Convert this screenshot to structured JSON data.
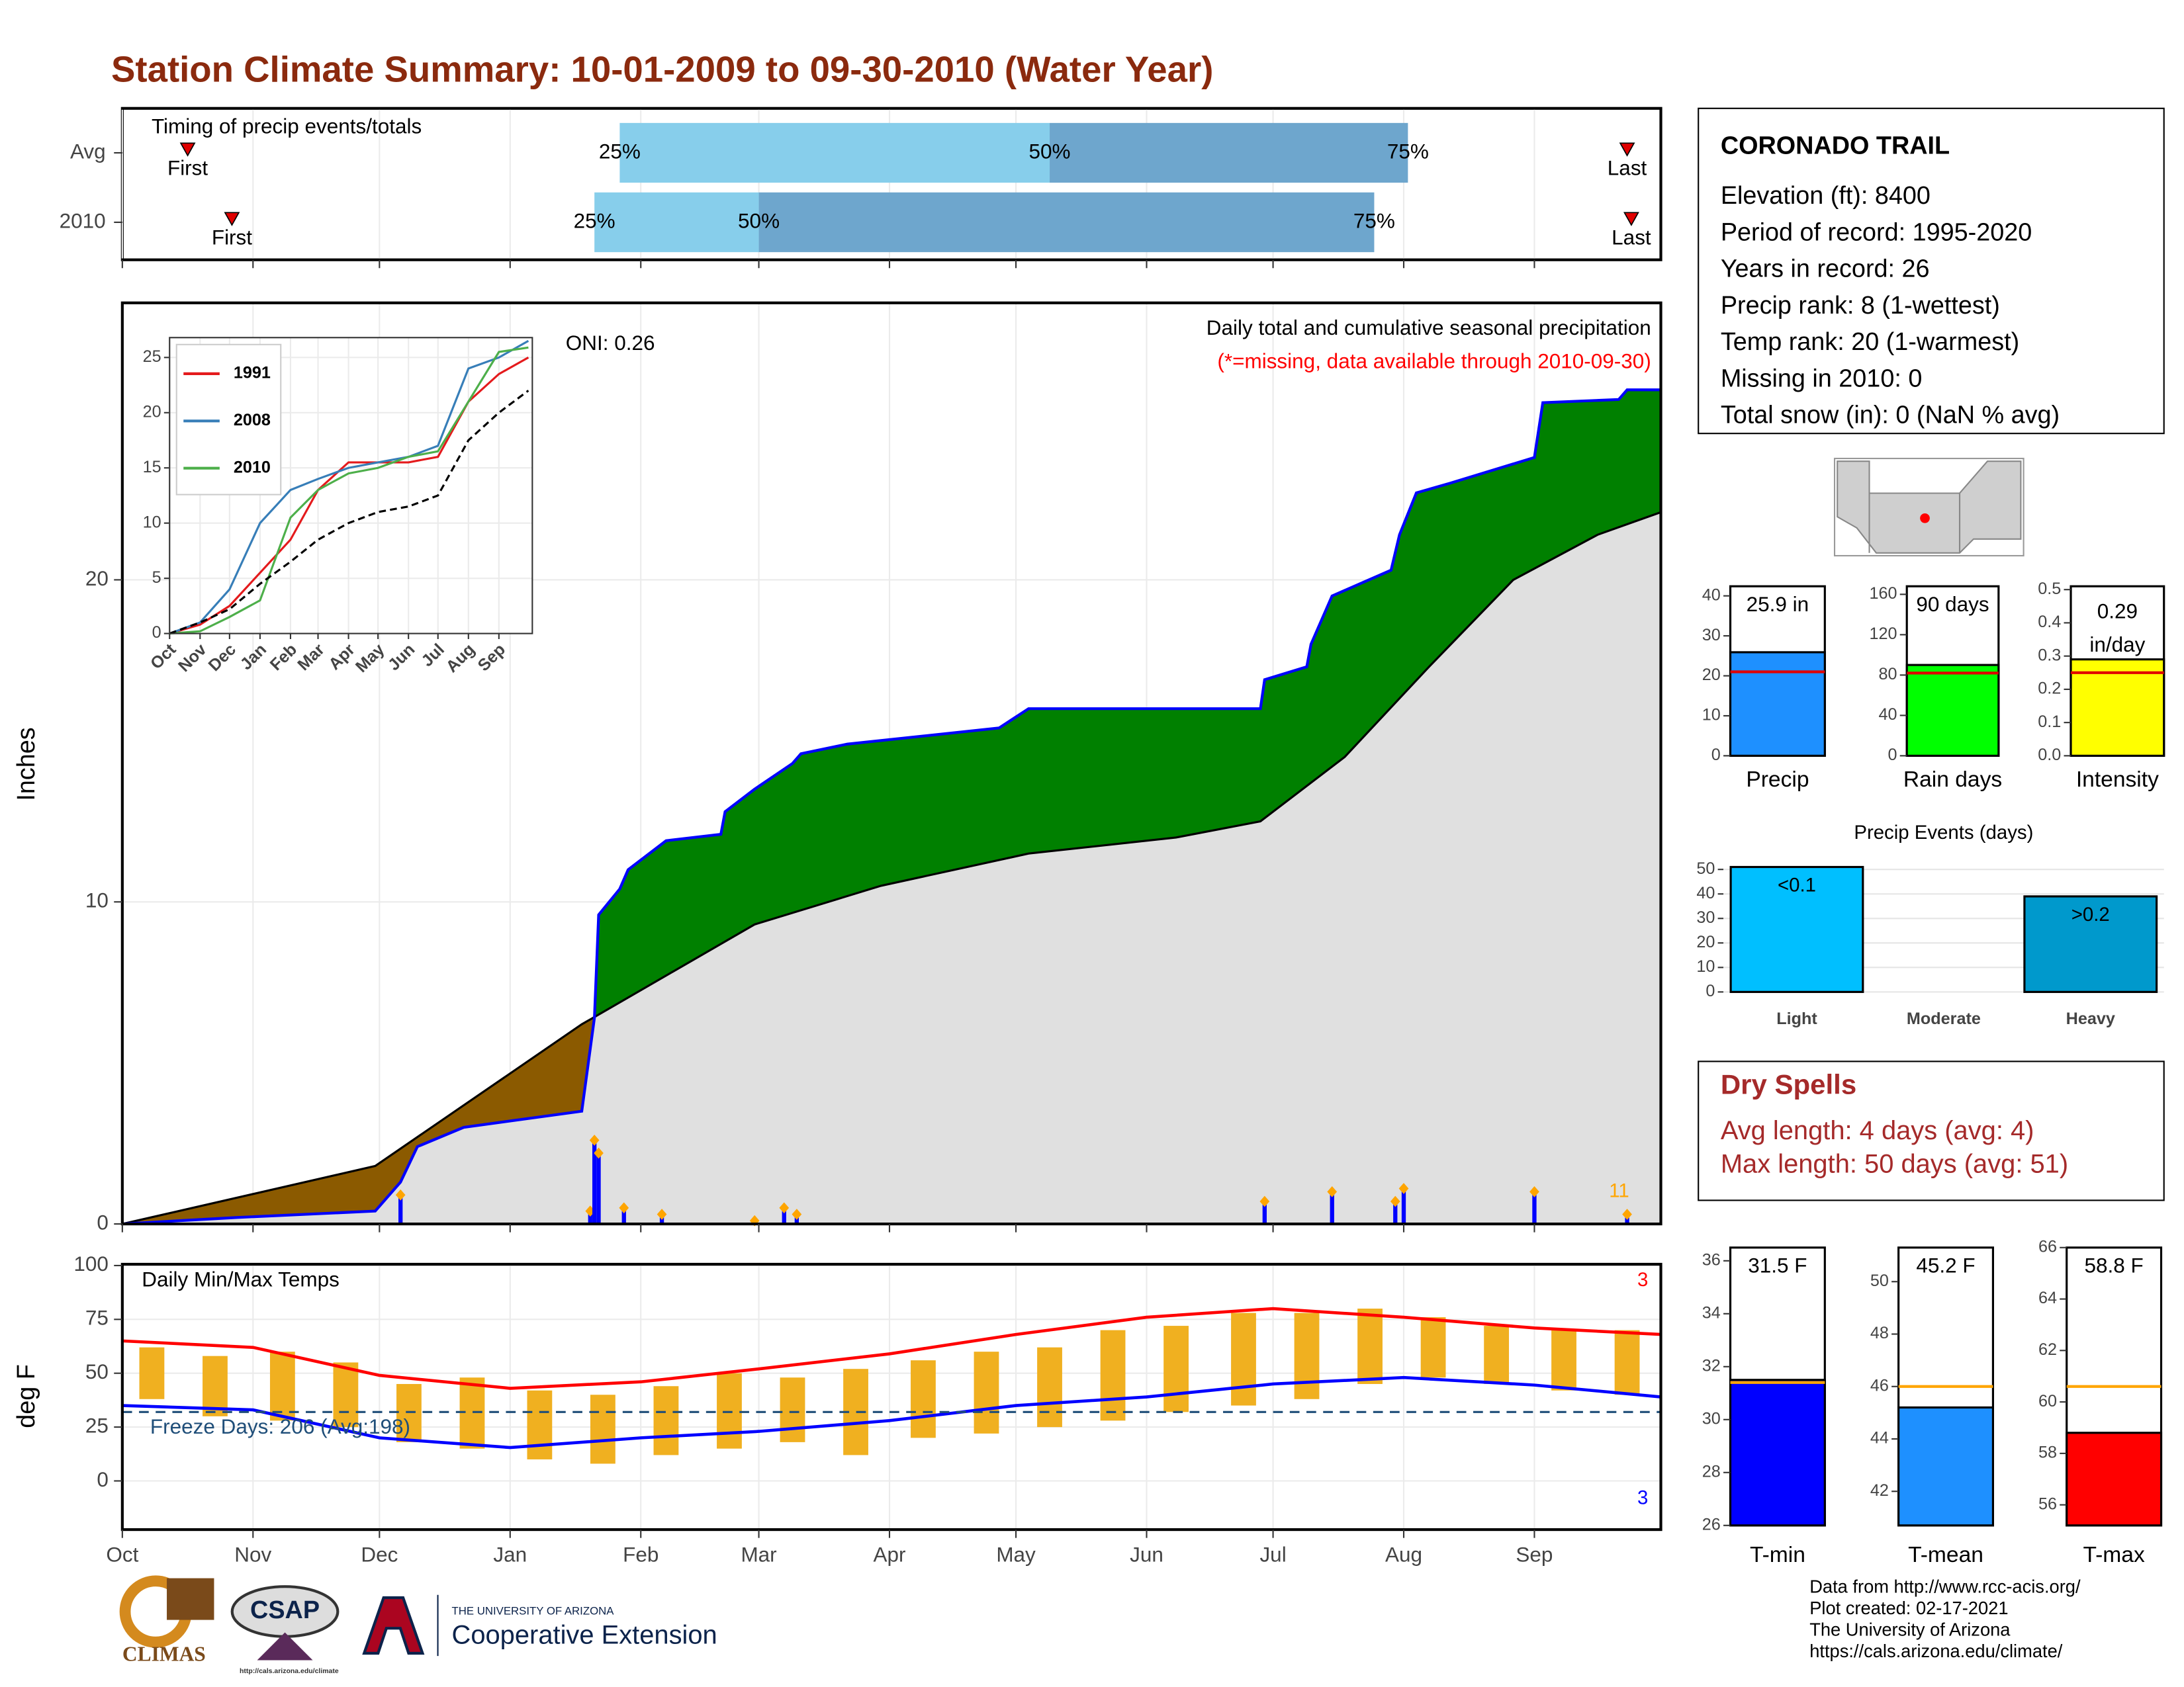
{
  "title": "Station Climate Summary: 10-01-2009 to 09-30-2010 (Water Year)",
  "chart_data": [
    {
      "type": "timing",
      "title": "Timing of precip events/totals",
      "categories": [
        "Avg",
        "2010"
      ],
      "first": [
        15.5,
        26
      ],
      "q25": [
        118,
        112
      ],
      "q50": [
        220,
        151
      ],
      "q75": [
        305,
        297
      ],
      "last": [
        357,
        358
      ],
      "first_label": "First",
      "last_label": "Last",
      "q_labels": [
        "25%",
        "50%",
        "75%"
      ],
      "colors": [
        "#87ceeb",
        "#6ea6cd"
      ],
      "marker_color": "#e00000",
      "xlim": [
        0,
        365
      ],
      "xticks": [
        0,
        31,
        61,
        92,
        123,
        151,
        182,
        212,
        243,
        273,
        304,
        335
      ]
    },
    {
      "type": "cumulative",
      "title": "Daily total and cumulative seasonal precipitation",
      "subtitle": "(*=missing, data available through 2010-09-30)",
      "annotation": "ONI: 0.26",
      "record_count": 11,
      "y_label": "Inches",
      "xlim": [
        0,
        365
      ],
      "xticks": [
        0,
        31,
        61,
        92,
        123,
        151,
        182,
        212,
        243,
        273,
        304,
        335
      ],
      "ylim": [
        0,
        28.6
      ],
      "yticks": [
        0,
        10,
        20
      ],
      "grid": true,
      "observed": {
        "color": "#0000ff",
        "x": [
          0,
          27,
          60,
          66,
          70,
          81,
          109,
          112,
          113,
          118,
          120,
          129,
          142,
          143,
          150,
          159,
          161,
          172,
          208,
          215,
          270,
          271,
          281,
          282,
          287,
          301,
          303,
          307,
          315,
          335,
          337,
          355,
          357,
          365
        ],
        "values": [
          0,
          0.2,
          0.4,
          1.3,
          2.4,
          3.0,
          3.5,
          6.4,
          9.6,
          10.4,
          11.0,
          11.9,
          12.1,
          12.8,
          13.5,
          14.3,
          14.6,
          14.9,
          15.4,
          16.0,
          16.0,
          16.9,
          17.3,
          18.0,
          19.5,
          20.3,
          21.4,
          22.7,
          23.0,
          23.8,
          25.5,
          25.6,
          25.9,
          25.9
        ]
      },
      "average": {
        "color": "#000000",
        "x": [
          0,
          60,
          109,
          113,
          150,
          180,
          215,
          250,
          270,
          290,
          310,
          330,
          350,
          365
        ],
        "values": [
          0,
          1.8,
          6.2,
          6.5,
          9.3,
          10.5,
          11.5,
          12.0,
          12.5,
          14.5,
          17.3,
          20.0,
          21.4,
          22.1
        ]
      },
      "daily": {
        "color": "#0000ff",
        "marker_color": "#ffa500",
        "x": [
          66,
          111,
          112,
          113,
          119,
          128,
          150,
          157,
          160,
          271,
          287,
          302,
          304,
          335,
          357
        ],
        "values": [
          0.9,
          0.4,
          2.6,
          2.2,
          0.5,
          0.3,
          0.1,
          0.5,
          0.3,
          0.7,
          1.0,
          0.7,
          1.1,
          1.0,
          0.3
        ]
      },
      "above_color": "#008000",
      "below_color": "#8b5a00",
      "base_color": "#e0e0e0"
    },
    {
      "type": "line",
      "xlim": [
        0,
        369
      ],
      "ylim": [
        0,
        26.8
      ],
      "yticks": [
        0,
        5,
        10,
        15,
        20,
        25
      ],
      "xticks": [
        {
          "value": 0,
          "label": "Oct"
        },
        {
          "value": 31,
          "label": "Nov"
        },
        {
          "value": 61,
          "label": "Dec"
        },
        {
          "value": 92,
          "label": "Jan"
        },
        {
          "value": 123,
          "label": "Feb"
        },
        {
          "value": 151,
          "label": "Mar"
        },
        {
          "value": 182,
          "label": "Apr"
        },
        {
          "value": 212,
          "label": "May"
        },
        {
          "value": 243,
          "label": "Jun"
        },
        {
          "value": 273,
          "label": "Jul"
        },
        {
          "value": 304,
          "label": "Aug"
        },
        {
          "value": 335,
          "label": "Sep"
        }
      ],
      "x": [
        0,
        31,
        61,
        92,
        123,
        151,
        182,
        212,
        243,
        273,
        304,
        335,
        365
      ],
      "series": [
        {
          "name": "1991",
          "color": "#e41a1c",
          "values": [
            0,
            0.8,
            2.5,
            5.5,
            8.5,
            13,
            15.5,
            15.5,
            15.5,
            16,
            21,
            23.5,
            25
          ]
        },
        {
          "name": "2008",
          "color": "#377eb8",
          "values": [
            0,
            1,
            4,
            10,
            13,
            14,
            15,
            15.5,
            16,
            17,
            24,
            25,
            26.5
          ]
        },
        {
          "name": "2010",
          "color": "#4daf4a",
          "values": [
            0,
            0.2,
            1.5,
            3,
            10.5,
            13,
            14.5,
            15,
            16,
            16.5,
            21,
            25.5,
            25.9
          ]
        },
        {
          "color": "#000000",
          "dashed": true,
          "values": [
            0,
            1,
            2.2,
            4.5,
            6.5,
            8.5,
            10,
            11,
            11.5,
            12.5,
            17.5,
            20,
            22
          ]
        }
      ]
    },
    {
      "type": "temps",
      "title": "Daily Min/Max Temps",
      "y_label": "deg F",
      "annotation": "Freeze Days: 206 (Avg:198)",
      "max_records": 3,
      "min_records": 3,
      "freeze_line": 32,
      "xlim": [
        0,
        365
      ],
      "ylim": [
        -22.6,
        100.6
      ],
      "yticks": [
        0,
        25,
        50,
        75,
        100
      ],
      "grid": true,
      "xticks": [
        {
          "value": 0,
          "label": "Oct"
        },
        {
          "value": 31,
          "label": "Nov"
        },
        {
          "value": 61,
          "label": "Dec"
        },
        {
          "value": 92,
          "label": "Jan"
        },
        {
          "value": 123,
          "label": "Feb"
        },
        {
          "value": 151,
          "label": "Mar"
        },
        {
          "value": 182,
          "label": "Apr"
        },
        {
          "value": 212,
          "label": "May"
        },
        {
          "value": 243,
          "label": "Jun"
        },
        {
          "value": 273,
          "label": "Jul"
        },
        {
          "value": 304,
          "label": "Aug"
        },
        {
          "value": 335,
          "label": "Sep"
        }
      ],
      "range": {
        "color": "#f0b020",
        "x": [
          7,
          22,
          38,
          53,
          68,
          83,
          99,
          114,
          129,
          144,
          159,
          174,
          190,
          205,
          220,
          235,
          250,
          266,
          281,
          296,
          311,
          326,
          342,
          357
        ],
        "low": [
          38,
          30,
          28,
          25,
          18,
          15,
          10,
          8,
          12,
          15,
          18,
          12,
          20,
          22,
          25,
          28,
          32,
          35,
          38,
          45,
          48,
          45,
          42,
          40
        ],
        "high": [
          62,
          58,
          60,
          55,
          45,
          48,
          42,
          40,
          44,
          50,
          48,
          52,
          56,
          60,
          62,
          70,
          72,
          78,
          78,
          80,
          76,
          72,
          70,
          70
        ]
      },
      "x": [
        0,
        31,
        61,
        92,
        123,
        151,
        182,
        212,
        243,
        273,
        304,
        335,
        365
      ],
      "series": [
        {
          "color": "#ff0000",
          "values": [
            65,
            62,
            49,
            43,
            46,
            52,
            59,
            68,
            76,
            80,
            76,
            71,
            68
          ]
        },
        {
          "color": "#0000ff",
          "values": [
            35,
            33,
            20,
            15.5,
            20,
            23,
            28,
            35,
            39,
            45,
            48,
            44.5,
            39
          ]
        }
      ]
    },
    {
      "type": "gauge",
      "label": "Precip",
      "value": 25.9,
      "value_label": [
        "25.9 in"
      ],
      "avg": 21,
      "color": "#1e90ff",
      "avg_color": "#e00000",
      "ylim": [
        0,
        42.4
      ],
      "yticks": [
        0,
        10,
        20,
        30,
        40
      ]
    },
    {
      "type": "gauge",
      "label": "Rain days",
      "value": 90,
      "value_label": [
        "90 days"
      ],
      "avg": 82,
      "color": "#00ff00",
      "avg_color": "#e00000",
      "ylim": [
        0,
        168
      ],
      "yticks": [
        0,
        40,
        80,
        120,
        160
      ]
    },
    {
      "type": "gauge",
      "label": "Intensity",
      "value": 0.29,
      "value_label": [
        "0.29",
        "in/day"
      ],
      "avg": 0.25,
      "color": "#ffff00",
      "avg_color": "#e00000",
      "ylim": [
        0,
        0.51
      ],
      "yticks": [
        {
          "value": 0,
          "label": "0.0"
        },
        0.1,
        0.2,
        0.3,
        0.4,
        0.5
      ]
    },
    {
      "type": "bar",
      "title": "Precip Events (days)",
      "categories": [
        "Light",
        "Moderate",
        "Heavy"
      ],
      "values": [
        51,
        0,
        39
      ],
      "bar_labels": [
        "<0.1",
        null,
        ">0.2"
      ],
      "colors": [
        "#00bfff",
        "#00bfff",
        "#0099cc"
      ],
      "ylim": [
        0,
        55
      ],
      "yticks": [
        0,
        10,
        20,
        30,
        40,
        50
      ],
      "grid": true
    },
    {
      "type": "gauge",
      "label": "T-min",
      "value": 31.5,
      "value_label": [
        "31.5 F"
      ],
      "avg": 31.4,
      "color": "#0000ff",
      "avg_color": "#ffa500",
      "ylim": [
        26,
        36.5
      ],
      "yticks": [
        26,
        28,
        30,
        32,
        34,
        36
      ]
    },
    {
      "type": "gauge",
      "label": "T-mean",
      "value": 45.2,
      "value_label": [
        "45.2 F"
      ],
      "avg": 46,
      "color": "#1e90ff",
      "avg_color": "#ffa500",
      "ylim": [
        40.7,
        51.3
      ],
      "yticks": [
        42,
        44,
        46,
        48,
        50
      ]
    },
    {
      "type": "gauge",
      "label": "T-max",
      "value": 58.8,
      "value_label": [
        "58.8 F"
      ],
      "avg": 60.6,
      "color": "#ff0000",
      "avg_color": "#ffa500",
      "ylim": [
        55.2,
        66
      ],
      "yticks": [
        56,
        58,
        60,
        62,
        64,
        66
      ]
    }
  ],
  "station": {
    "name": "CORONADO TRAIL",
    "lines": [
      "Elevation (ft): 8400",
      "Period of record: 1995-2020",
      "Years in record: 26",
      "Precip rank: 8 (1-wettest)",
      "Temp rank: 20 (1-warmest)",
      "Missing in 2010: 0",
      "Total snow (in): 0 (NaN % avg)"
    ]
  },
  "dry_spells": {
    "title": "Dry Spells",
    "lines": [
      "Avg length: 4 days (avg: 4)",
      "Max length: 50 days (avg: 51)"
    ]
  },
  "footer": {
    "logos": [
      "CLIMAS",
      "CSAP",
      "http://cals.arizona.edu/climate",
      "THE UNIVERSITY OF ARIZONA",
      "Cooperative Extension"
    ],
    "credits": [
      "Data from http://www.rcc-acis.org/",
      "Plot created: 02-17-2021",
      "The University of Arizona",
      "https://cals.arizona.edu/climate/"
    ]
  }
}
